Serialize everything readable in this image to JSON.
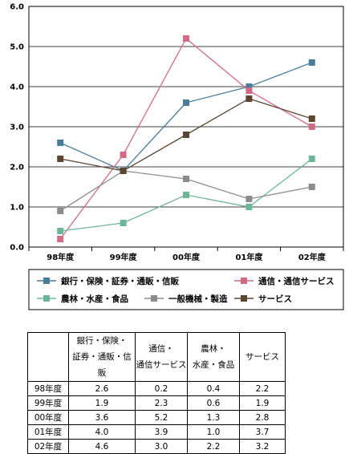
{
  "chart_data": {
    "type": "line",
    "categories": [
      "98年度",
      "99年度",
      "00年度",
      "01年度",
      "02年度"
    ],
    "ylim": [
      0,
      6
    ],
    "yticks": [
      "0.0",
      "1.0",
      "2.0",
      "3.0",
      "4.0",
      "5.0",
      "6.0"
    ],
    "grid": "horizontal",
    "legend": "bottom",
    "series": [
      {
        "name": "銀行・保険・証券・通販・信販",
        "values": [
          2.6,
          1.9,
          3.6,
          4.0,
          4.6
        ],
        "color": "#4a7d99"
      },
      {
        "name": "通信・通信サービス",
        "values": [
          0.2,
          2.3,
          5.2,
          3.9,
          3.0
        ],
        "color": "#d26c86"
      },
      {
        "name": "農林・水産・食品",
        "values": [
          0.4,
          0.6,
          1.3,
          1.0,
          2.2
        ],
        "color": "#6db596"
      },
      {
        "name": "一般機械・製造",
        "values": [
          0.9,
          1.9,
          1.7,
          1.2,
          1.5
        ],
        "color": "#8c8c8c"
      },
      {
        "name": "サービス",
        "values": [
          2.2,
          1.9,
          2.8,
          3.7,
          3.2
        ],
        "color": "#5a4632"
      }
    ]
  },
  "table": {
    "headers": [
      [
        "",
        ""
      ],
      [
        "銀行・保険・",
        "証券・通販・信販"
      ],
      [
        "通信・",
        "通信サービス"
      ],
      [
        "農林・",
        "水産・食品"
      ],
      [
        "サービス",
        ""
      ]
    ],
    "rows": [
      {
        "label": "98年度",
        "cells": [
          "2.6",
          "0.2",
          "0.4",
          "2.2"
        ]
      },
      {
        "label": "99年度",
        "cells": [
          "1.9",
          "2.3",
          "0.6",
          "1.9"
        ]
      },
      {
        "label": "00年度",
        "cells": [
          "3.6",
          "5.2",
          "1.3",
          "2.8"
        ]
      },
      {
        "label": "01年度",
        "cells": [
          "4.0",
          "3.9",
          "1.0",
          "3.7"
        ]
      },
      {
        "label": "02年度",
        "cells": [
          "4.6",
          "3.0",
          "2.2",
          "3.2"
        ]
      }
    ]
  }
}
